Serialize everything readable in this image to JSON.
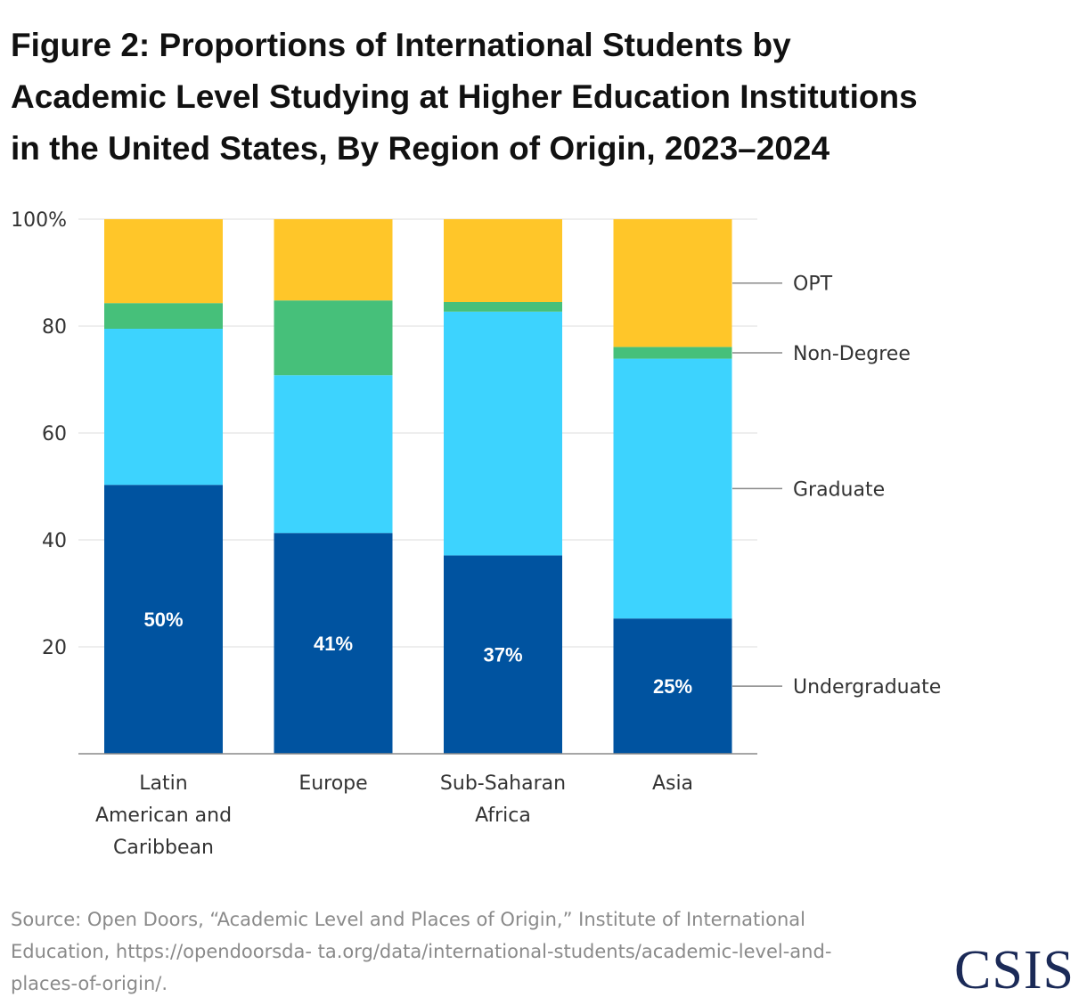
{
  "title_lines": [
    "Figure 2: Proportions of International Students by",
    "Academic Level Studying at Higher Education Institutions",
    "in the United States, By Region of Origin, 2023–2024"
  ],
  "source_lines": [
    "Source: Open Doors, “Academic Level and Places of Origin,” Institute of International",
    "Education, https://opendoorsda- ta.org/data/international-students/academic-level-and-",
    "places-of-origin/."
  ],
  "logo": "CSIS",
  "colors": {
    "Undergraduate": "#0053a0",
    "Graduate": "#3dd3fe",
    "Non-Degree": "#46c07a",
    "OPT": "#ffc629",
    "grid": "#dddddd",
    "axis": "#888888"
  },
  "chart_data": {
    "type": "bar",
    "stacked": true,
    "categories": [
      [
        "Latin",
        "American and",
        "Caribbean"
      ],
      [
        "Europe"
      ],
      [
        "Sub-Saharan",
        "Africa"
      ],
      [
        "Asia"
      ]
    ],
    "series": [
      {
        "name": "Undergraduate",
        "values": [
          50.3,
          41.3,
          37.1,
          25.3
        ]
      },
      {
        "name": "Graduate",
        "values": [
          29.2,
          29.5,
          45.6,
          48.6
        ]
      },
      {
        "name": "Non-Degree",
        "values": [
          4.8,
          14.0,
          1.8,
          2.2
        ]
      },
      {
        "name": "OPT",
        "values": [
          15.7,
          15.2,
          15.5,
          23.9
        ]
      }
    ],
    "data_labels": [
      "50%",
      "41%",
      "37%",
      "25%"
    ],
    "y_ticks": [
      20,
      40,
      60,
      80,
      100
    ],
    "y_tick_labels": [
      "20",
      "40",
      "60",
      "80",
      "100%"
    ],
    "ylim": [
      0,
      100
    ],
    "grid": true,
    "legend": "right, labels aligned to the last bar's segments"
  }
}
